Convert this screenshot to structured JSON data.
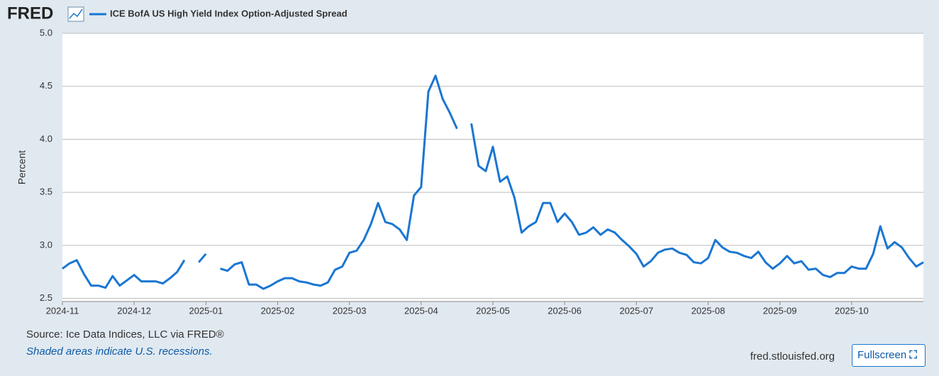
{
  "chart_data": {
    "type": "line",
    "logo": "FRED",
    "title": "ICE BofA US High Yield Index Option-Adjusted Spread",
    "y_label": "Percent",
    "source": "Source: Ice Data Indices, LLC via FRED®",
    "note": "Shaded areas indicate U.S. recessions.",
    "site": "fred.stlouisfed.org",
    "button": "Fullscreen",
    "categories": [
      "2024-11",
      null,
      null,
      null,
      null,
      null,
      null,
      null,
      null,
      null,
      "2024-12",
      null,
      null,
      null,
      null,
      null,
      null,
      null,
      null,
      null,
      "2025-01",
      null,
      null,
      null,
      null,
      null,
      null,
      null,
      null,
      null,
      "2025-02",
      null,
      null,
      null,
      null,
      null,
      null,
      null,
      null,
      null,
      "2025-03",
      null,
      null,
      null,
      null,
      null,
      null,
      null,
      null,
      null,
      "2025-04",
      null,
      null,
      null,
      null,
      null,
      null,
      null,
      null,
      null,
      "2025-05",
      null,
      null,
      null,
      null,
      null,
      null,
      null,
      null,
      null,
      "2025-06",
      null,
      null,
      null,
      null,
      null,
      null,
      null,
      null,
      null,
      "2025-07",
      null,
      null,
      null,
      null,
      null,
      null,
      null,
      null,
      null,
      "2025-08",
      null,
      null,
      null,
      null,
      null,
      null,
      null,
      null,
      null,
      "2025-09",
      null,
      null,
      null,
      null,
      null,
      null,
      null,
      null,
      null,
      "2025-10",
      null,
      null,
      null,
      null,
      null,
      null,
      null,
      null,
      null,
      null
    ],
    "series": [
      {
        "name": "ICE BofA US High Yield Index Option-Adjusted Spread",
        "color": "#1a76d2",
        "values": [
          2.78,
          2.83,
          2.86,
          2.73,
          2.62,
          2.62,
          2.6,
          2.71,
          2.62,
          2.67,
          2.72,
          2.66,
          2.66,
          2.66,
          2.64,
          2.69,
          2.75,
          2.86,
          null,
          2.84,
          2.92,
          null,
          2.78,
          2.76,
          2.82,
          2.84,
          2.63,
          2.63,
          2.59,
          2.62,
          2.66,
          2.69,
          2.69,
          2.66,
          2.65,
          2.63,
          2.62,
          2.65,
          2.77,
          2.8,
          2.93,
          2.95,
          3.05,
          3.2,
          3.4,
          3.22,
          3.2,
          3.15,
          3.05,
          3.47,
          3.55,
          4.45,
          4.6,
          4.38,
          4.25,
          4.1,
          null,
          4.15,
          3.75,
          3.7,
          3.93,
          3.6,
          3.65,
          3.45,
          3.12,
          3.18,
          3.22,
          3.4,
          3.4,
          3.22,
          3.3,
          3.22,
          3.1,
          3.12,
          3.17,
          3.1,
          3.15,
          3.12,
          3.05,
          2.99,
          2.92,
          2.8,
          2.85,
          2.93,
          2.96,
          2.97,
          2.93,
          2.91,
          2.84,
          2.83,
          2.88,
          3.05,
          2.98,
          2.94,
          2.93,
          2.9,
          2.88,
          2.94,
          2.84,
          2.78,
          2.83,
          2.9,
          2.83,
          2.85,
          2.77,
          2.78,
          2.72,
          2.7,
          2.74,
          2.74,
          2.8,
          2.78,
          2.78,
          2.92,
          3.18,
          2.97,
          3.03,
          2.98,
          2.88,
          2.8,
          2.84
        ]
      }
    ],
    "ylim": [
      2.47,
      5
    ],
    "yticks": [
      2.5,
      {
        "value": 3,
        "label": "3.0"
      },
      3.5,
      {
        "value": 4,
        "label": "4.0"
      },
      4.5,
      {
        "value": 5,
        "label": "5.0"
      }
    ],
    "grid": true
  }
}
